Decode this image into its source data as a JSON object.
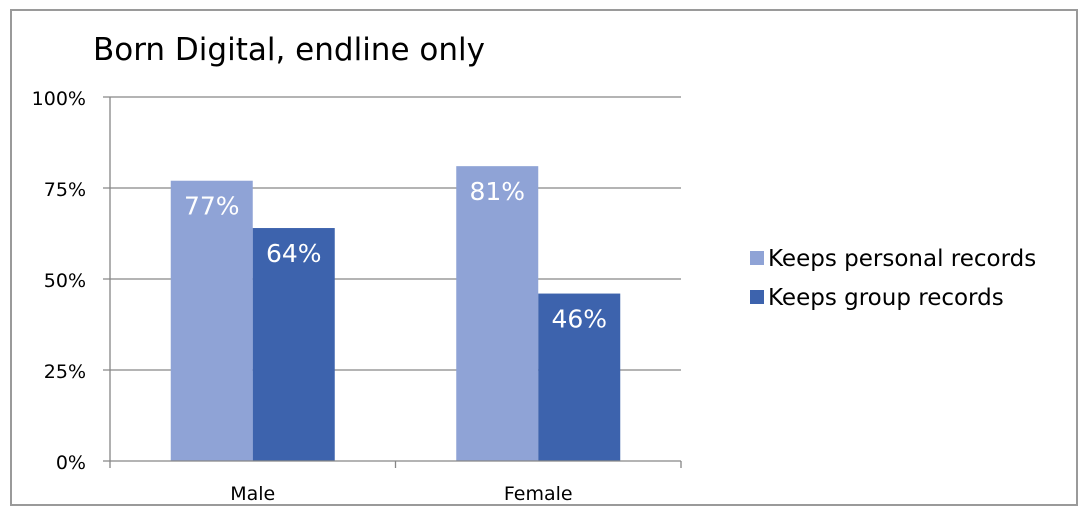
{
  "chart_data": {
    "type": "bar",
    "title": "Born Digital, endline only",
    "xlabel": "",
    "ylabel": "",
    "categories": [
      "Male",
      "Female"
    ],
    "series": [
      {
        "name": "Keeps personal records",
        "values": [
          77,
          81
        ],
        "labels": [
          "77%",
          "81%"
        ],
        "color": "#8fa3d6"
      },
      {
        "name": "Keeps group records",
        "values": [
          64,
          46
        ],
        "labels": [
          "64%",
          "46%"
        ],
        "color": "#3d63ad"
      }
    ],
    "ylim": [
      0,
      100
    ],
    "yticks": [
      0,
      25,
      50,
      75,
      100
    ],
    "ytick_labels": [
      "0%",
      "25%",
      "50%",
      "75%",
      "100%"
    ],
    "grid": true,
    "legend_position": "right",
    "colors": {
      "axis": "#868686",
      "grid": "#868686",
      "border": "#9a9a9a",
      "data_label": "#ffffff",
      "text": "#000000"
    }
  }
}
